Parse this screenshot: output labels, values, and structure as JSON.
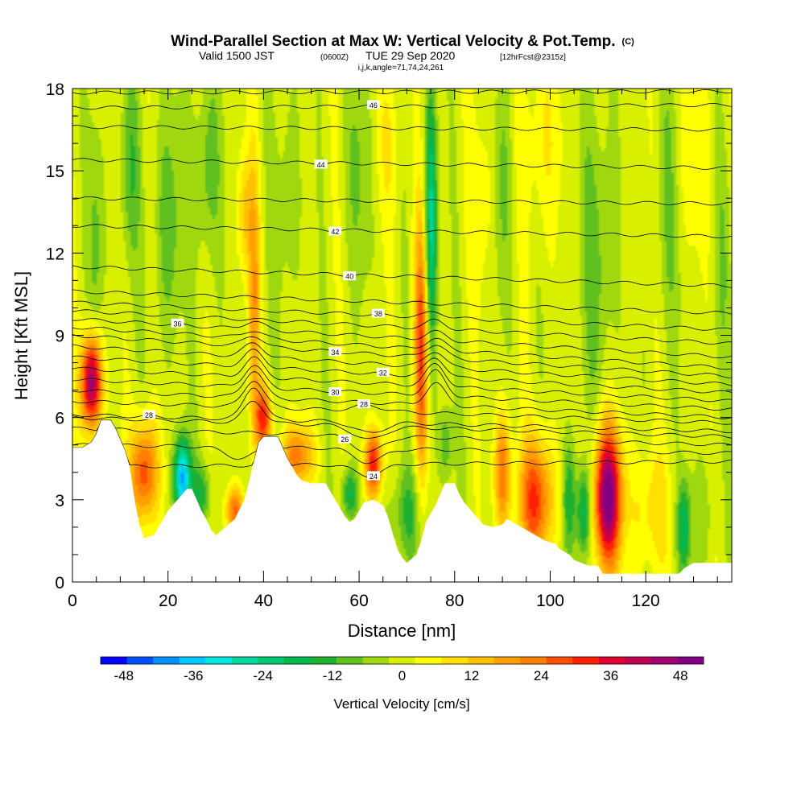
{
  "chart_data": {
    "type": "heatmap",
    "title": "Wind-Parallel Section at Max W: Vertical Velocity & Pot.Temp.",
    "title_mark": "(C)",
    "subtitle_main": "Valid 1500 JST",
    "subtitle_utc": "(0600Z)",
    "subtitle_date": "TUE 29 Sep 2020",
    "subtitle_fcst": "[12hrFcst@2315z]",
    "subtitle2": "i,j,k,angle=71,74,24,261",
    "xlabel": "Distance [nm]",
    "ylabel": "Height [Kft MSL]",
    "xlim": [
      0,
      138
    ],
    "ylim": [
      0,
      18
    ],
    "xticks": [
      "0",
      "20",
      "40",
      "60",
      "80",
      "100",
      "120"
    ],
    "yticks": [
      "0",
      "3",
      "6",
      "9",
      "12",
      "15",
      "18"
    ],
    "colorbar": {
      "label": "Vertical Velocity [cm/s]",
      "ticks": [
        "-48",
        "-36",
        "-24",
        "-12",
        "0",
        "12",
        "24",
        "36",
        "48"
      ],
      "range": [
        -52,
        52
      ],
      "colors": [
        "#0000ff",
        "#0050ff",
        "#0090ff",
        "#00c8ff",
        "#00e8e0",
        "#00d8a0",
        "#00c870",
        "#00b850",
        "#20b030",
        "#60c020",
        "#a0d810",
        "#d8f000",
        "#ffff00",
        "#ffe000",
        "#ffc000",
        "#ffa000",
        "#ff8000",
        "#ff5000",
        "#ff2000",
        "#e00030",
        "#c00050",
        "#a00070",
        "#800080"
      ]
    },
    "terrain": [
      [
        0,
        4.9
      ],
      [
        2,
        4.9
      ],
      [
        4,
        5.1
      ],
      [
        5,
        5.4
      ],
      [
        6,
        5.9
      ],
      [
        8,
        5.9
      ],
      [
        9,
        5.6
      ],
      [
        10,
        5.2
      ],
      [
        11,
        4.8
      ],
      [
        12,
        4.2
      ],
      [
        13,
        3.0
      ],
      [
        14,
        2.1
      ],
      [
        15,
        1.6
      ],
      [
        17,
        1.7
      ],
      [
        18,
        2.0
      ],
      [
        19,
        2.3
      ],
      [
        20,
        2.6
      ],
      [
        21,
        2.8
      ],
      [
        22,
        3.0
      ],
      [
        23,
        3.2
      ],
      [
        24,
        3.4
      ],
      [
        25,
        3.4
      ],
      [
        26,
        3.0
      ],
      [
        27,
        2.6
      ],
      [
        28,
        2.3
      ],
      [
        29,
        1.9
      ],
      [
        30,
        1.7
      ],
      [
        32,
        2.0
      ],
      [
        34,
        2.3
      ],
      [
        36,
        3.0
      ],
      [
        37,
        3.7
      ],
      [
        38,
        4.4
      ],
      [
        39,
        5.1
      ],
      [
        40,
        5.3
      ],
      [
        43,
        5.3
      ],
      [
        44,
        4.9
      ],
      [
        45,
        4.5
      ],
      [
        46,
        4.2
      ],
      [
        47,
        3.9
      ],
      [
        48,
        3.7
      ],
      [
        50,
        3.6
      ],
      [
        53,
        3.6
      ],
      [
        54,
        3.3
      ],
      [
        55,
        3.0
      ],
      [
        56,
        2.7
      ],
      [
        57,
        2.4
      ],
      [
        58,
        2.2
      ],
      [
        59,
        2.3
      ],
      [
        60,
        2.6
      ],
      [
        61,
        2.9
      ],
      [
        63,
        3.0
      ],
      [
        65,
        2.8
      ],
      [
        66,
        2.4
      ],
      [
        67,
        1.8
      ],
      [
        68,
        1.2
      ],
      [
        69,
        0.9
      ],
      [
        70,
        0.7
      ],
      [
        72,
        1.0
      ],
      [
        73,
        1.5
      ],
      [
        74,
        2.2
      ],
      [
        76,
        2.8
      ],
      [
        78,
        3.6
      ],
      [
        80,
        3.6
      ],
      [
        81,
        3.2
      ],
      [
        82,
        2.9
      ],
      [
        83,
        2.7
      ],
      [
        84,
        2.5
      ],
      [
        85,
        2.3
      ],
      [
        86,
        2.1
      ],
      [
        88,
        2.0
      ],
      [
        90,
        2.1
      ],
      [
        91,
        2.3
      ],
      [
        93,
        2.1
      ],
      [
        95,
        1.9
      ],
      [
        97,
        1.7
      ],
      [
        99,
        1.5
      ],
      [
        101,
        1.4
      ],
      [
        102,
        1.2
      ],
      [
        104,
        1.0
      ],
      [
        105,
        0.8
      ],
      [
        108,
        0.6
      ],
      [
        110,
        0.6
      ],
      [
        111,
        0.3
      ],
      [
        127,
        0.3
      ],
      [
        128,
        0.5
      ],
      [
        130,
        0.7
      ],
      [
        138,
        0.7
      ]
    ],
    "theta_contours": [
      {
        "level": 24,
        "label": "24",
        "y0": 4.2,
        "y1": 4.4,
        "ridges": [
          [
            62,
            -0.4,
            3
          ]
        ],
        "label_x": 63
      },
      {
        "level": 25,
        "label": "",
        "y0": 5.0,
        "y1": 4.7,
        "ridges": [
          [
            62,
            -0.5,
            3
          ],
          [
            35,
            -0.4,
            3
          ]
        ]
      },
      {
        "level": 26,
        "label": "26",
        "y0": 5.6,
        "y1": 5.0,
        "ridges": [
          [
            62,
            -0.6,
            3
          ]
        ],
        "label_x": 57
      },
      {
        "level": 27,
        "label": "",
        "y0": 6.0,
        "y1": 5.3,
        "ridges": [
          [
            62,
            -0.5,
            3
          ],
          [
            38,
            0.8,
            2
          ]
        ]
      },
      {
        "level": 28,
        "label": "28",
        "y0": 6.1,
        "y1": 5.5,
        "ridges": [
          [
            62,
            -0.4,
            3
          ],
          [
            38,
            1.2,
            2
          ]
        ],
        "label_x": 16
      },
      {
        "level": 28.5,
        "label": "28",
        "y0": 6.6,
        "y1": 5.8,
        "ridges": [
          [
            62,
            0.2,
            3
          ],
          [
            38,
            1.0,
            2
          ]
        ],
        "label_x": 61
      },
      {
        "level": 29,
        "label": "",
        "y0": 7.0,
        "y1": 6.0,
        "ridges": [
          [
            38,
            1.0,
            2
          ],
          [
            76,
            0.8,
            2
          ]
        ]
      },
      {
        "level": 30,
        "label": "30",
        "y0": 7.4,
        "y1": 6.3,
        "ridges": [
          [
            38,
            0.8,
            2
          ],
          [
            76,
            0.9,
            2
          ]
        ],
        "label_x": 55
      },
      {
        "level": 31,
        "label": "",
        "y0": 7.8,
        "y1": 6.6,
        "ridges": [
          [
            38,
            0.7,
            2
          ],
          [
            76,
            0.8,
            2
          ]
        ]
      },
      {
        "level": 32,
        "label": "32",
        "y0": 8.2,
        "y1": 6.9,
        "ridges": [
          [
            38,
            0.6,
            2
          ],
          [
            76,
            0.7,
            2
          ]
        ],
        "label_x": 65
      },
      {
        "level": 33,
        "label": "",
        "y0": 8.6,
        "y1": 7.2,
        "ridges": [
          [
            38,
            0.5,
            2
          ],
          [
            76,
            0.6,
            2
          ]
        ]
      },
      {
        "level": 34,
        "label": "34",
        "y0": 9.0,
        "y1": 7.5,
        "ridges": [
          [
            38,
            0.4,
            2
          ],
          [
            76,
            0.5,
            2
          ]
        ],
        "label_x": 55
      },
      {
        "level": 35,
        "label": "",
        "y0": 9.3,
        "y1": 7.8,
        "ridges": [
          [
            38,
            0.3,
            2
          ],
          [
            76,
            0.4,
            2
          ]
        ]
      },
      {
        "level": 36,
        "label": "36",
        "y0": 9.6,
        "y1": 8.2,
        "ridges": [
          [
            38,
            0.3,
            2
          ],
          [
            76,
            0.3,
            2
          ]
        ],
        "label_x": 22
      },
      {
        "level": 37,
        "label": "",
        "y0": 9.9,
        "y1": 8.7,
        "ridges": [
          [
            76,
            0.3,
            2
          ]
        ]
      },
      {
        "level": 38,
        "label": "38",
        "y0": 10.2,
        "y1": 9.2,
        "ridges": [
          [
            76,
            0.2,
            2
          ]
        ],
        "label_x": 64
      },
      {
        "level": 39,
        "label": "",
        "y0": 10.6,
        "y1": 9.8,
        "ridges": []
      },
      {
        "level": 40,
        "label": "40",
        "y0": 11.5,
        "y1": 10.8,
        "ridges": [],
        "label_x": 58
      },
      {
        "level": 42,
        "label": "42",
        "y0": 13.0,
        "y1": 12.6,
        "ridges": [],
        "label_x": 55
      },
      {
        "level": 43,
        "label": "",
        "y0": 14.0,
        "y1": 13.8,
        "ridges": []
      },
      {
        "level": 44,
        "label": "44",
        "y0": 15.4,
        "y1": 15.1,
        "ridges": [],
        "label_x": 52
      },
      {
        "level": 45,
        "label": "",
        "y0": 16.6,
        "y1": 16.5,
        "ridges": []
      },
      {
        "level": 46,
        "label": "46",
        "y0": 17.3,
        "y1": 17.4,
        "ridges": [],
        "label_x": 63
      },
      {
        "level": 47,
        "label": "",
        "y0": 17.85,
        "y1": 17.9,
        "ridges": []
      }
    ],
    "w_features": [
      {
        "x": 4,
        "y": 7.3,
        "sx": 1.5,
        "sy": 1.2,
        "v": 48
      },
      {
        "x": 15,
        "y": 4.0,
        "sx": 2.0,
        "sy": 1.3,
        "v": 30
      },
      {
        "x": 23,
        "y": 3.8,
        "sx": 1.2,
        "sy": 1.0,
        "v": -40
      },
      {
        "x": 27,
        "y": 3.2,
        "sx": 1.5,
        "sy": 0.8,
        "v": -14
      },
      {
        "x": 34,
        "y": 2.6,
        "sx": 1.3,
        "sy": 0.6,
        "v": 26
      },
      {
        "x": 40,
        "y": 6.0,
        "sx": 1.2,
        "sy": 0.8,
        "v": 30
      },
      {
        "x": 38,
        "y": 10.5,
        "sx": 0.9,
        "sy": 3.5,
        "v": 18
      },
      {
        "x": 36,
        "y": 13.5,
        "sx": 1.0,
        "sy": 1.5,
        "v": 12
      },
      {
        "x": 47,
        "y": 4.6,
        "sx": 2.5,
        "sy": 0.8,
        "v": 22
      },
      {
        "x": 58,
        "y": 3.2,
        "sx": 1.2,
        "sy": 0.7,
        "v": -18
      },
      {
        "x": 63,
        "y": 4.3,
        "sx": 1.3,
        "sy": 0.9,
        "v": 34
      },
      {
        "x": 70,
        "y": 2.5,
        "sx": 2.5,
        "sy": 1.3,
        "v": -12
      },
      {
        "x": 75,
        "y": 13.0,
        "sx": 0.9,
        "sy": 3.5,
        "v": -28
      },
      {
        "x": 73,
        "y": 8.5,
        "sx": 1.1,
        "sy": 3.5,
        "v": 30
      },
      {
        "x": 78,
        "y": 5.0,
        "sx": 1.0,
        "sy": 1.0,
        "v": -12
      },
      {
        "x": 90,
        "y": 4.0,
        "sx": 1.2,
        "sy": 1.5,
        "v": 24
      },
      {
        "x": 97,
        "y": 3.0,
        "sx": 2.5,
        "sy": 1.6,
        "v": 30
      },
      {
        "x": 104,
        "y": 3.0,
        "sx": 1.0,
        "sy": 1.5,
        "v": -16
      },
      {
        "x": 107,
        "y": 2.5,
        "sx": 1.0,
        "sy": 1.2,
        "v": -22
      },
      {
        "x": 112,
        "y": 3.1,
        "sx": 2.0,
        "sy": 1.8,
        "v": 52
      },
      {
        "x": 121,
        "y": 2.6,
        "sx": 3.0,
        "sy": 1.6,
        "v": 10
      },
      {
        "x": 128,
        "y": 2.0,
        "sx": 1.0,
        "sy": 1.2,
        "v": -20
      },
      {
        "x": 132,
        "y": 2.5,
        "sx": 1.5,
        "sy": 1.4,
        "v": -6
      },
      {
        "x": 5,
        "y": 12.5,
        "sx": 1.2,
        "sy": 3.0,
        "v": -8
      },
      {
        "x": 12,
        "y": 15.0,
        "sx": 1.5,
        "sy": 2.5,
        "v": -10
      },
      {
        "x": 20,
        "y": 13.0,
        "sx": 2.0,
        "sy": 3.0,
        "v": -10
      },
      {
        "x": 28,
        "y": 15.0,
        "sx": 2.0,
        "sy": 2.5,
        "v": -10
      },
      {
        "x": 45,
        "y": 14.0,
        "sx": 2.0,
        "sy": 3.0,
        "v": -6
      },
      {
        "x": 60,
        "y": 15.0,
        "sx": 2.0,
        "sy": 3.0,
        "v": -7
      },
      {
        "x": 90,
        "y": 14.5,
        "sx": 1.5,
        "sy": 3.0,
        "v": -8
      },
      {
        "x": 110,
        "y": 12.0,
        "sx": 2.5,
        "sy": 4.0,
        "v": -9
      },
      {
        "x": 125,
        "y": 14.0,
        "sx": 2.0,
        "sy": 3.5,
        "v": -7
      },
      {
        "x": 136,
        "y": 12.0,
        "sx": 1.5,
        "sy": 3.0,
        "v": -5
      },
      {
        "x": 86,
        "y": 14.0,
        "sx": 2.0,
        "sy": 2.5,
        "v": 6
      },
      {
        "x": 98,
        "y": 16.0,
        "sx": 3.0,
        "sy": 2.5,
        "v": 7
      },
      {
        "x": 66,
        "y": 16.0,
        "sx": 2.0,
        "sy": 2.0,
        "v": 6
      },
      {
        "x": 130,
        "y": 15.5,
        "sx": 3.0,
        "sy": 2.5,
        "v": 6
      }
    ]
  }
}
